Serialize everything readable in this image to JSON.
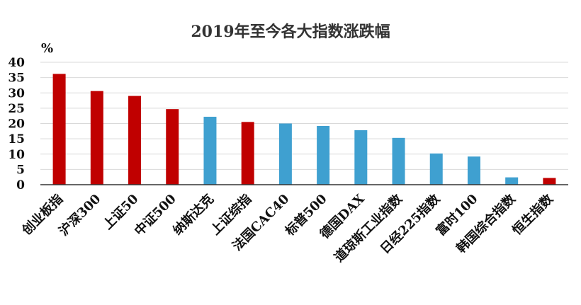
{
  "chart_data": {
    "type": "bar",
    "title": "2019年至今各大指数涨跌幅",
    "ylabel": "%",
    "xlabel": "",
    "ylim": [
      0,
      40
    ],
    "yticks": [
      0,
      5,
      10,
      15,
      20,
      25,
      30,
      35,
      40
    ],
    "grid": true,
    "legend": "none",
    "categories": [
      "创业板指",
      "沪深300",
      "上证50",
      "中证500",
      "纳斯达克",
      "上证综指",
      "法国CAC40",
      "标普500",
      "德国DAX",
      "道琼斯工业指数",
      "日经225指数",
      "富时100",
      "韩国综合指数",
      "恒生指数"
    ],
    "values": [
      36.2,
      30.6,
      29.0,
      24.7,
      22.2,
      20.5,
      20.0,
      19.2,
      17.8,
      15.3,
      10.2,
      9.2,
      2.4,
      2.2
    ],
    "bar_colors": [
      "#c00000",
      "#c00000",
      "#c00000",
      "#c00000",
      "#3fa0d0",
      "#c00000",
      "#3fa0d0",
      "#3fa0d0",
      "#3fa0d0",
      "#3fa0d0",
      "#3fa0d0",
      "#3fa0d0",
      "#3fa0d0",
      "#c00000"
    ]
  }
}
